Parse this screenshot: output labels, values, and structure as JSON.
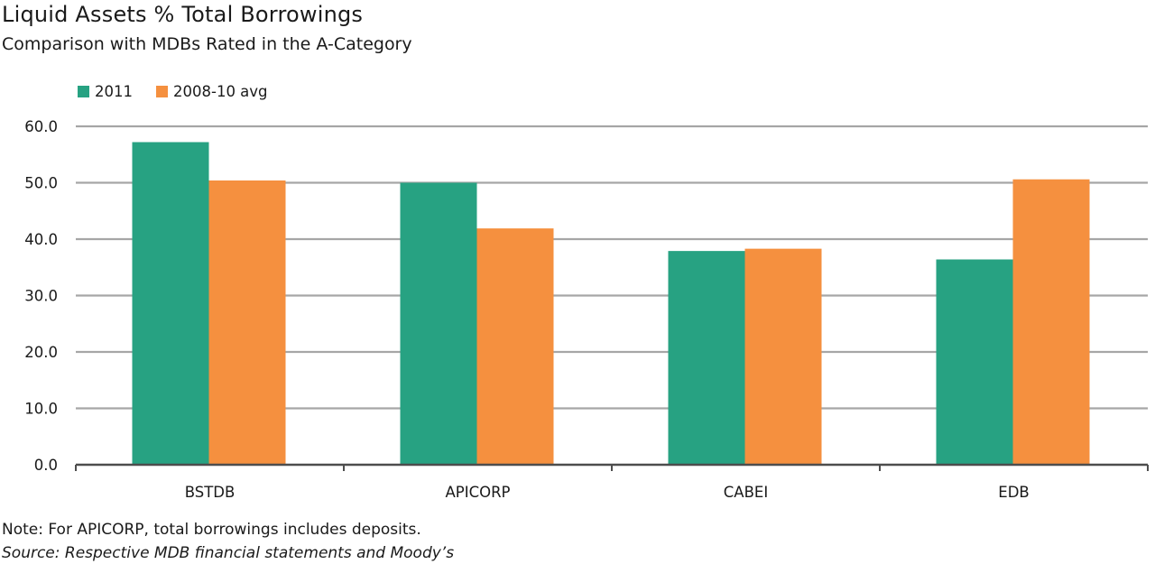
{
  "chart_data": {
    "type": "bar",
    "title": "Liquid Assets % Total Borrowings",
    "subtitle": "Comparison with MDBs Rated in the A-Category",
    "categories": [
      "BSTDB",
      "APICORP",
      "CABEI",
      "EDB"
    ],
    "series": [
      {
        "name": "2011",
        "values": [
          57.2,
          50.0,
          37.9,
          36.4
        ],
        "color": "#27a282"
      },
      {
        "name": "2008-10 avg",
        "values": [
          50.4,
          41.9,
          38.3,
          50.6
        ],
        "color": "#f5903f"
      }
    ],
    "xlabel": "",
    "ylabel": "",
    "ylim": [
      0,
      60
    ],
    "yticks": [
      "0.0",
      "10.0",
      "20.0",
      "30.0",
      "40.0",
      "50.0",
      "60.0"
    ],
    "grid": true,
    "legend_position": "top-left"
  },
  "note": "Note: For APICORP, total borrowings includes deposits.",
  "source": "Source: Respective MDB financial statements and Moody’s"
}
